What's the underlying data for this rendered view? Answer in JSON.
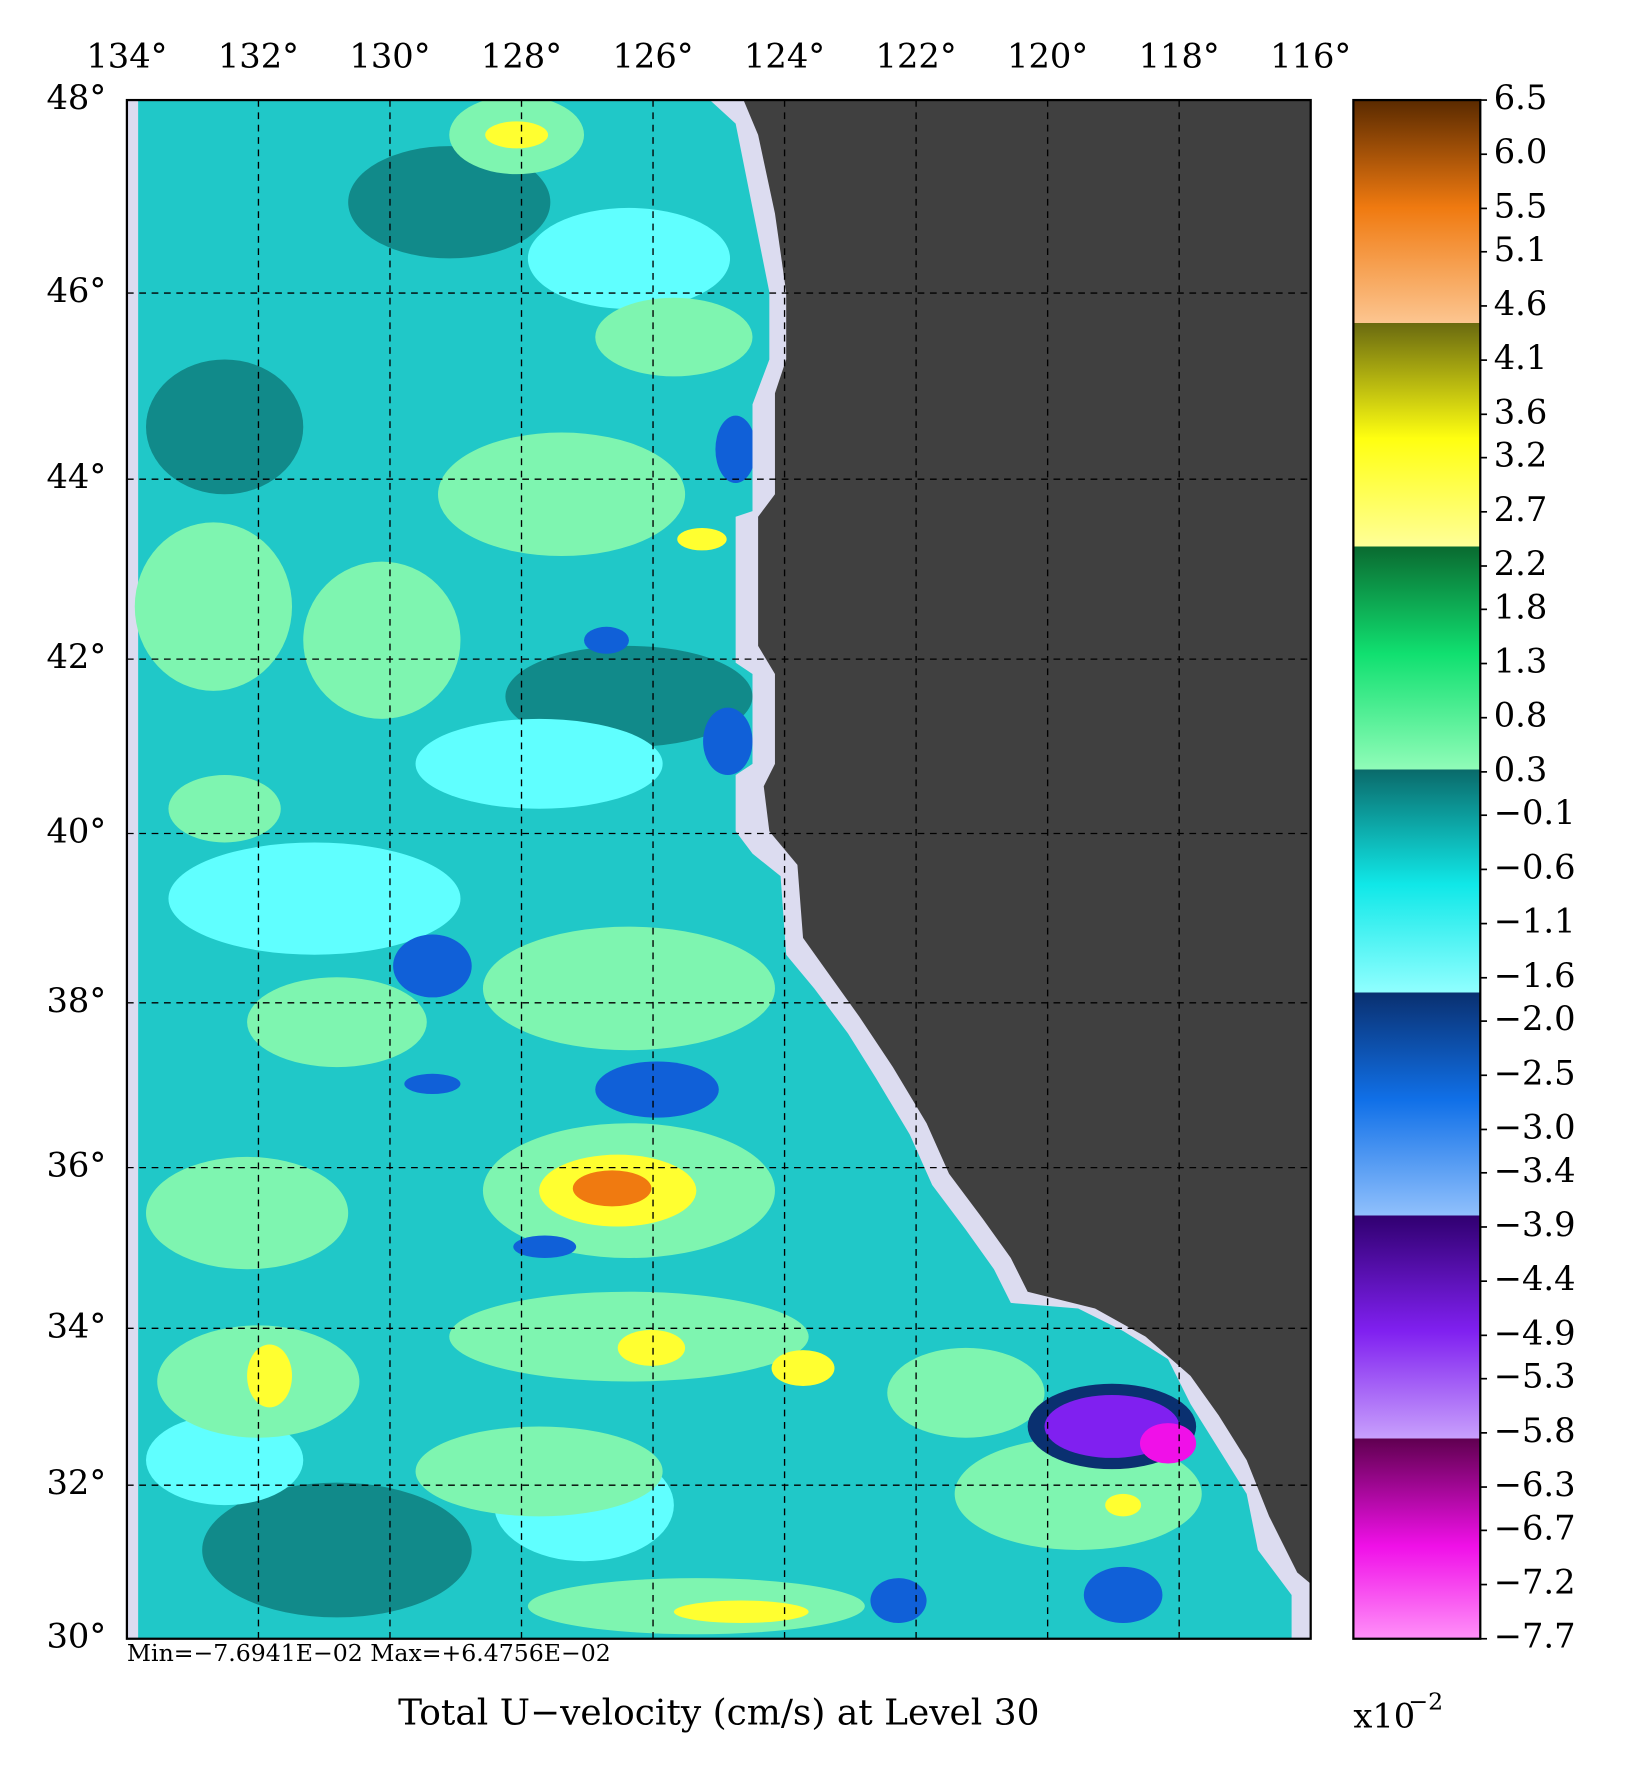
{
  "map": {
    "title": "Total U−velocity (cm/s) at Level 30",
    "min_max": "Min=−7.6941E−02   Max=+6.4756E−02",
    "projection": "mercator",
    "xlim": [
      134,
      116
    ],
    "ylim": [
      30,
      48
    ],
    "xticks": [
      {
        "value": 134,
        "label": "134°"
      },
      {
        "value": 132,
        "label": "132°"
      },
      {
        "value": 130,
        "label": "130°"
      },
      {
        "value": 128,
        "label": "128°"
      },
      {
        "value": 126,
        "label": "126°"
      },
      {
        "value": 124,
        "label": "124°"
      },
      {
        "value": 122,
        "label": "122°"
      },
      {
        "value": 120,
        "label": "120°"
      },
      {
        "value": 118,
        "label": "118°"
      },
      {
        "value": 116,
        "label": "116°"
      }
    ],
    "yticks": [
      {
        "value": 48,
        "label": "48°"
      },
      {
        "value": 46,
        "label": "46°"
      },
      {
        "value": 44,
        "label": "44°"
      },
      {
        "value": 42,
        "label": "42°"
      },
      {
        "value": 40,
        "label": "40°"
      },
      {
        "value": 38,
        "label": "38°"
      },
      {
        "value": 36,
        "label": "36°"
      },
      {
        "value": 34,
        "label": "34°"
      },
      {
        "value": 32,
        "label": "32°"
      },
      {
        "value": 30,
        "label": "30°"
      }
    ],
    "grid": true,
    "colorbar": {
      "clim": [
        -7.7,
        6.5
      ],
      "ticks": [
        {
          "value": 6.5,
          "label": "6.5"
        },
        {
          "value": 6.0,
          "label": "6.0"
        },
        {
          "value": 5.5,
          "label": "5.5"
        },
        {
          "value": 5.1,
          "label": "5.1"
        },
        {
          "value": 4.6,
          "label": "4.6"
        },
        {
          "value": 4.1,
          "label": "4.1"
        },
        {
          "value": 3.6,
          "label": "3.6"
        },
        {
          "value": 3.2,
          "label": "3.2"
        },
        {
          "value": 2.7,
          "label": "2.7"
        },
        {
          "value": 2.2,
          "label": "2.2"
        },
        {
          "value": 1.8,
          "label": "1.8"
        },
        {
          "value": 1.3,
          "label": "1.3"
        },
        {
          "value": 0.8,
          "label": "0.8"
        },
        {
          "value": 0.3,
          "label": "0.3"
        },
        {
          "value": -0.1,
          "label": "−0.1"
        },
        {
          "value": -0.6,
          "label": "−0.6"
        },
        {
          "value": -1.1,
          "label": "−1.1"
        },
        {
          "value": -1.6,
          "label": "−1.6"
        },
        {
          "value": -2.0,
          "label": "−2.0"
        },
        {
          "value": -2.5,
          "label": "−2.5"
        },
        {
          "value": -3.0,
          "label": "−3.0"
        },
        {
          "value": -3.4,
          "label": "−3.4"
        },
        {
          "value": -3.9,
          "label": "−3.9"
        },
        {
          "value": -4.4,
          "label": "−4.4"
        },
        {
          "value": -4.9,
          "label": "−4.9"
        },
        {
          "value": -5.3,
          "label": "−5.3"
        },
        {
          "value": -5.8,
          "label": "−5.8"
        },
        {
          "value": -6.3,
          "label": "−6.3"
        },
        {
          "value": -6.7,
          "label": "−6.7"
        },
        {
          "value": -7.2,
          "label": "−7.2"
        },
        {
          "value": -7.7,
          "label": "−7.7"
        }
      ],
      "scale_base": "x10",
      "scale_exponent": "−2"
    }
  }
}
